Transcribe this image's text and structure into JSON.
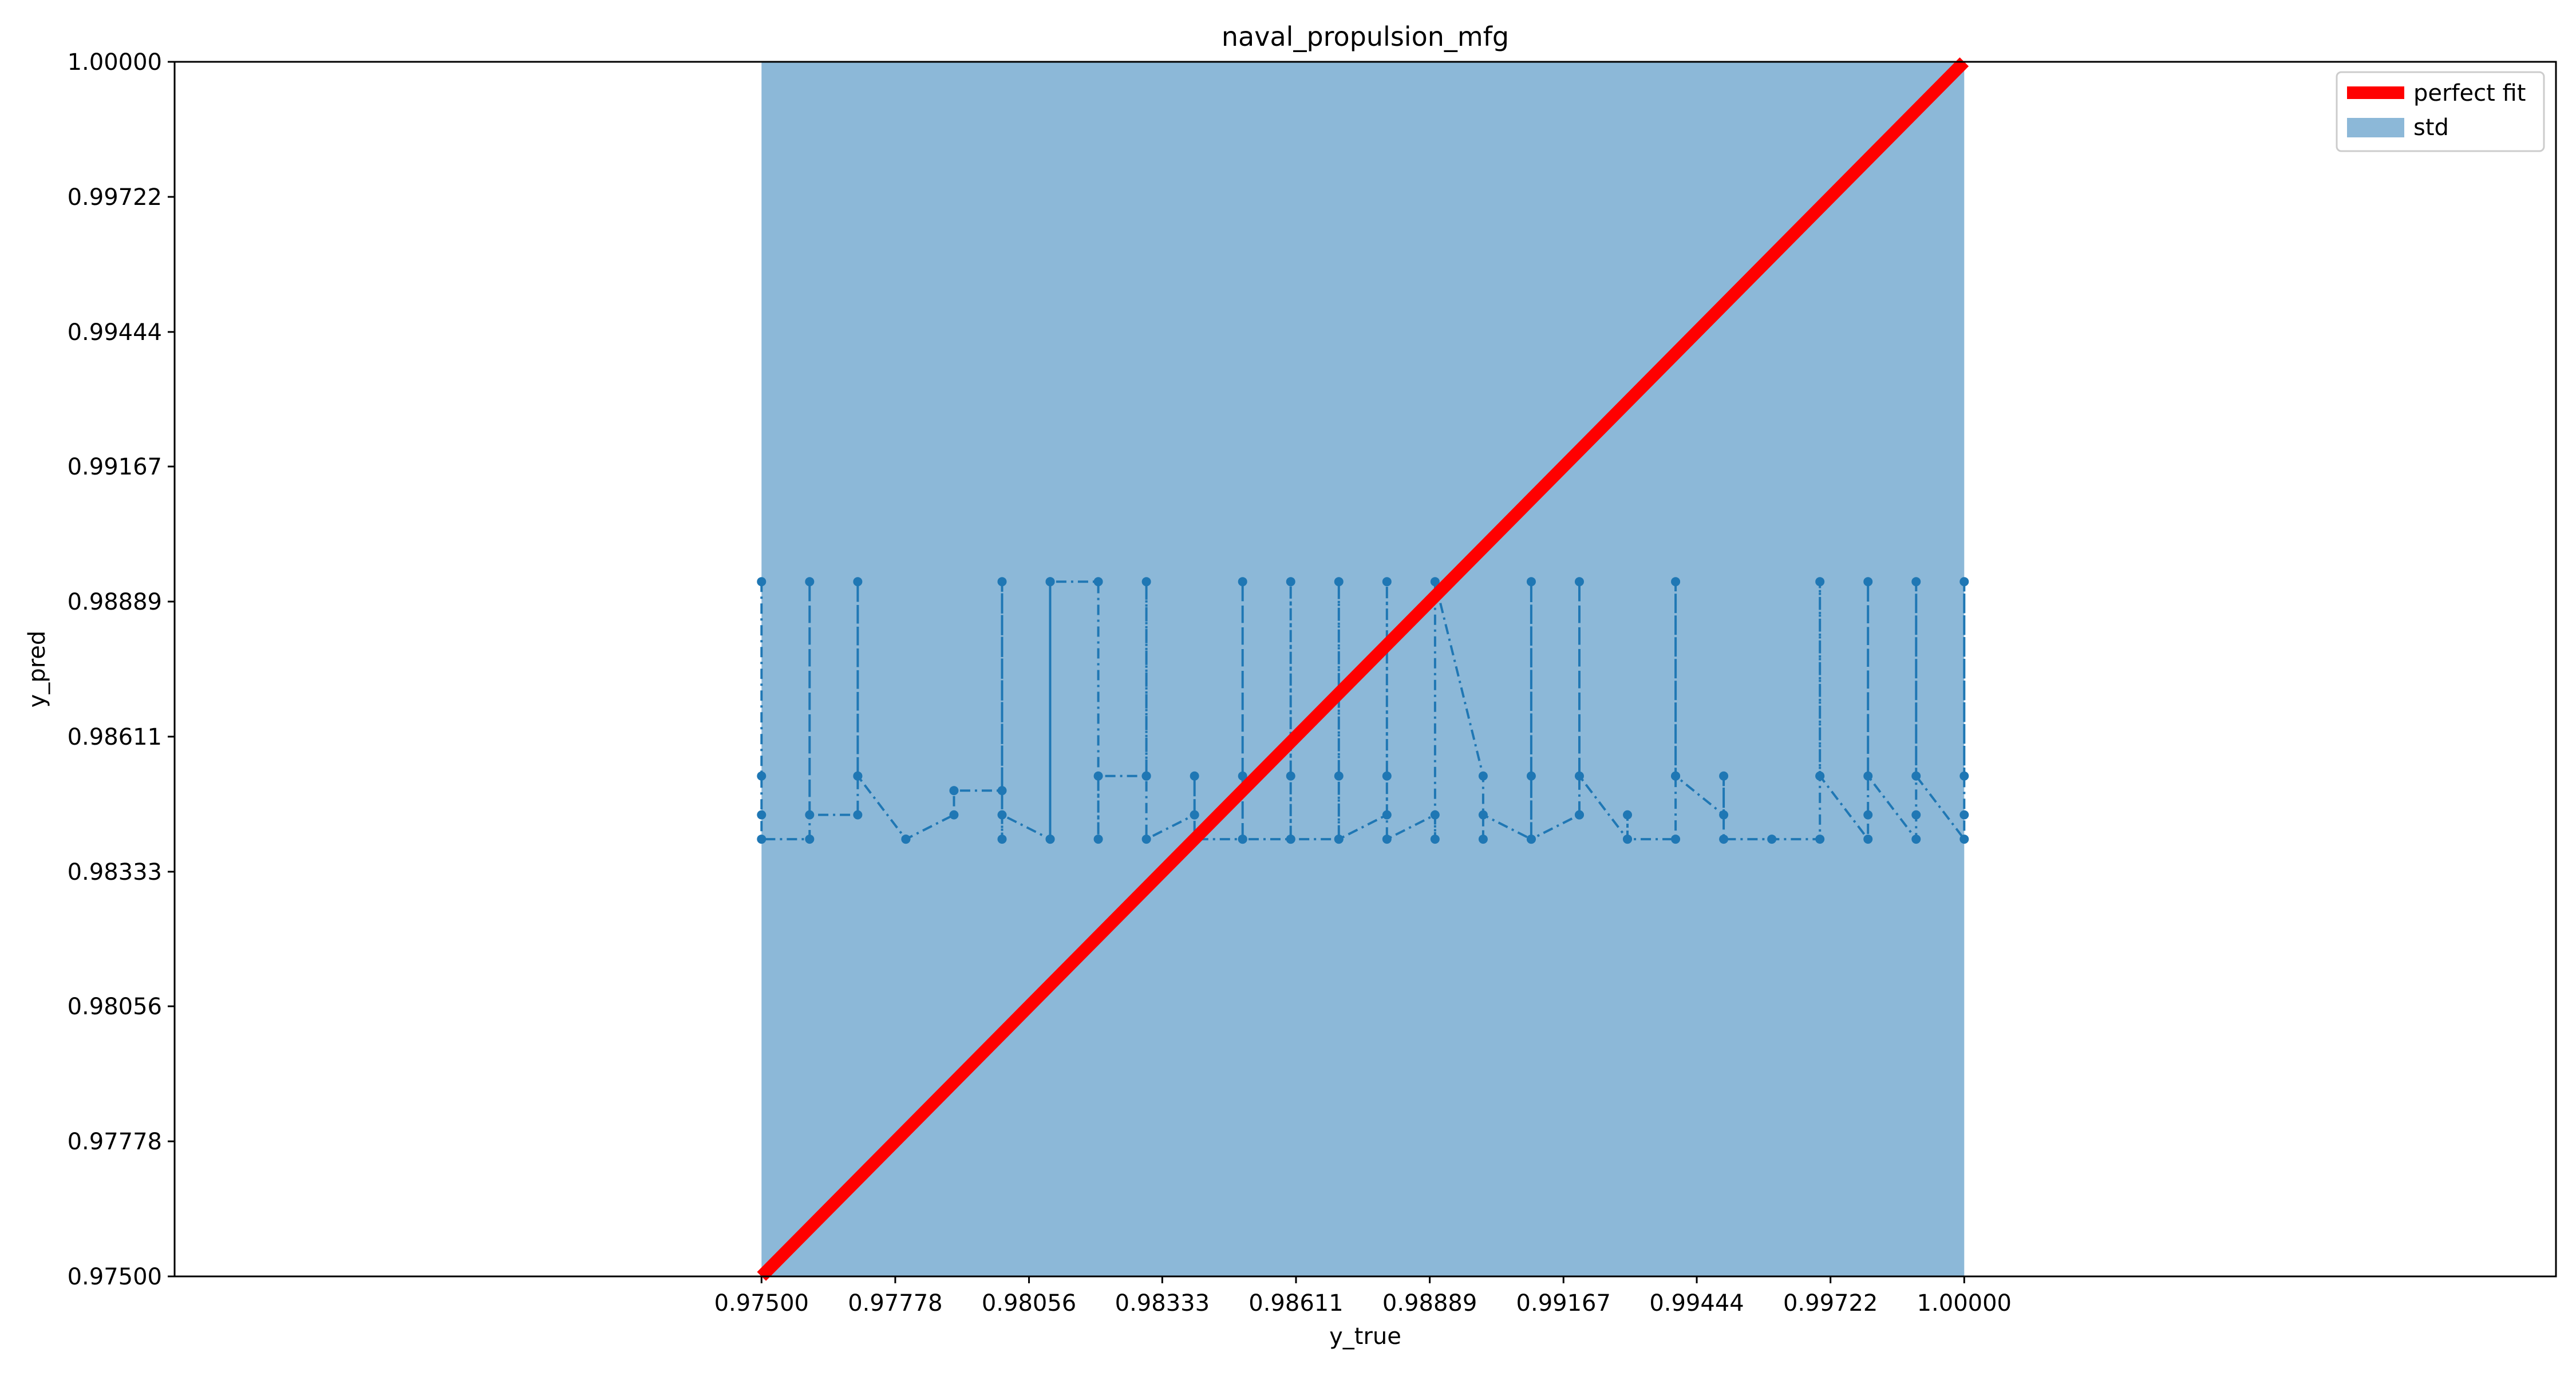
{
  "chart_data": {
    "type": "line",
    "title": "naval_propulsion_mfg",
    "xlabel": "y_true",
    "ylabel": "y_pred",
    "xlim": [
      0.9628,
      1.0123
    ],
    "ylim": [
      0.975,
      1.0
    ],
    "x_ticks": [
      "0.97500",
      "0.97778",
      "0.98056",
      "0.98333",
      "0.98611",
      "0.98889",
      "0.99167",
      "0.99444",
      "0.99722",
      "1.00000"
    ],
    "x_tick_values": [
      0.975,
      0.97778,
      0.98056,
      0.98333,
      0.98611,
      0.98889,
      0.99167,
      0.99444,
      0.99722,
      1.0
    ],
    "y_ticks": [
      "0.97500",
      "0.97778",
      "0.98056",
      "0.98333",
      "0.98611",
      "0.98889",
      "0.99167",
      "0.99444",
      "0.99722",
      "1.00000"
    ],
    "y_tick_values": [
      0.975,
      0.97778,
      0.98056,
      0.98333,
      0.98611,
      0.98889,
      0.99167,
      0.99444,
      0.99722,
      1.0
    ],
    "grid": false,
    "legend_position": "top-right",
    "legend": [
      {
        "label": "perfect fit",
        "color": "#ff0000",
        "kind": "line"
      },
      {
        "label": "std",
        "color": "#8cb8d8",
        "kind": "patch"
      }
    ],
    "perfect_fit": {
      "x": [
        0.975,
        1.0
      ],
      "y": [
        0.975,
        1.0
      ],
      "color": "#ff0000"
    },
    "std_band": {
      "x0": 0.975,
      "x1": 1.0,
      "y0": 0.975,
      "y1": 1.0,
      "color": "#8cb8d8"
    },
    "series": [
      {
        "color": "#1f77b4",
        "line_style": "dash-dot",
        "x": [
          0.975,
          0.975,
          0.975,
          0.975,
          0.976,
          0.976,
          0.976,
          0.977,
          0.977,
          0.977,
          0.977,
          0.978,
          0.978,
          0.979,
          0.979,
          0.98,
          0.98,
          0.98,
          0.98,
          0.981,
          0.981,
          0.981,
          0.981,
          0.982,
          0.982,
          0.982,
          0.983,
          0.983,
          0.983,
          0.983,
          0.984,
          0.984,
          0.984,
          0.984,
          0.985,
          0.985,
          0.985,
          0.985,
          0.986,
          0.986,
          0.986,
          0.986,
          0.987,
          0.987,
          0.987,
          0.987,
          0.988,
          0.988,
          0.988,
          0.988,
          0.989,
          0.989,
          0.989,
          0.99,
          0.99,
          0.99,
          0.991,
          0.991,
          0.991,
          0.991,
          0.992,
          0.992,
          0.992,
          0.992,
          0.993,
          0.993,
          0.993,
          0.994,
          0.994,
          0.994,
          0.994,
          0.995,
          0.995,
          0.995,
          0.996,
          0.997,
          0.997,
          0.997,
          0.997,
          0.998,
          0.998,
          0.998,
          0.998,
          0.999,
          0.999,
          0.999,
          0.999,
          1.0,
          1.0,
          1.0,
          1.0
        ],
        "y": [
          0.9893,
          0.9853,
          0.9845,
          0.984,
          0.984,
          0.9893,
          0.9845,
          0.9845,
          0.9853,
          0.9893,
          0.9853,
          0.984,
          0.984,
          0.9845,
          0.985,
          0.985,
          0.984,
          0.9893,
          0.9845,
          0.984,
          0.9893,
          0.984,
          0.9893,
          0.9893,
          0.984,
          0.9853,
          0.9853,
          0.9893,
          0.9853,
          0.984,
          0.9845,
          0.9845,
          0.9853,
          0.984,
          0.984,
          0.9893,
          0.9853,
          0.984,
          0.984,
          0.9893,
          0.9853,
          0.984,
          0.984,
          0.9893,
          0.9853,
          0.984,
          0.9845,
          0.9893,
          0.9853,
          0.984,
          0.9845,
          0.984,
          0.9893,
          0.9853,
          0.984,
          0.9845,
          0.984,
          0.9893,
          0.9853,
          0.984,
          0.9845,
          0.9845,
          0.9893,
          0.9853,
          0.984,
          0.9845,
          0.984,
          0.984,
          0.9853,
          0.9893,
          0.9853,
          0.9845,
          0.9853,
          0.984,
          0.984,
          0.984,
          0.9853,
          0.9893,
          0.9853,
          0.984,
          0.9845,
          0.9893,
          0.9853,
          0.984,
          0.9845,
          0.9893,
          0.9853,
          0.984,
          0.9845,
          0.9893,
          0.9853
        ]
      }
    ]
  }
}
